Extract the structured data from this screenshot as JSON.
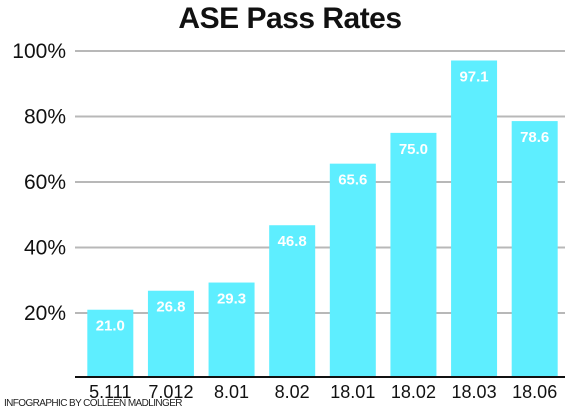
{
  "chart_data": {
    "type": "bar",
    "title": "ASE Pass Rates",
    "categories": [
      "5.111",
      "7.012",
      "8.01",
      "8.02",
      "18.01",
      "18.02",
      "18.03",
      "18.06"
    ],
    "values": [
      21.0,
      26.8,
      29.3,
      46.8,
      65.6,
      75.0,
      97.1,
      78.6
    ],
    "data_labels": [
      "21.0",
      "26.8",
      "29.3",
      "46.8",
      "65.6",
      "75.0",
      "97.1",
      "78.6"
    ],
    "yticks": [
      20,
      40,
      60,
      80,
      100
    ],
    "ytick_labels": [
      "20%",
      "40%",
      "60%",
      "80%",
      "100%"
    ],
    "ylim": [
      0,
      105
    ],
    "xlabel": "",
    "ylabel": "",
    "grid": true,
    "legend": "none",
    "colors": {
      "bar": "#5eeeff",
      "grid": "#b8b8b8",
      "axis": "#111111",
      "label": "#ffffff"
    }
  },
  "credit": "INFOGRAPHIC BY COLLEEN MADLINGER"
}
